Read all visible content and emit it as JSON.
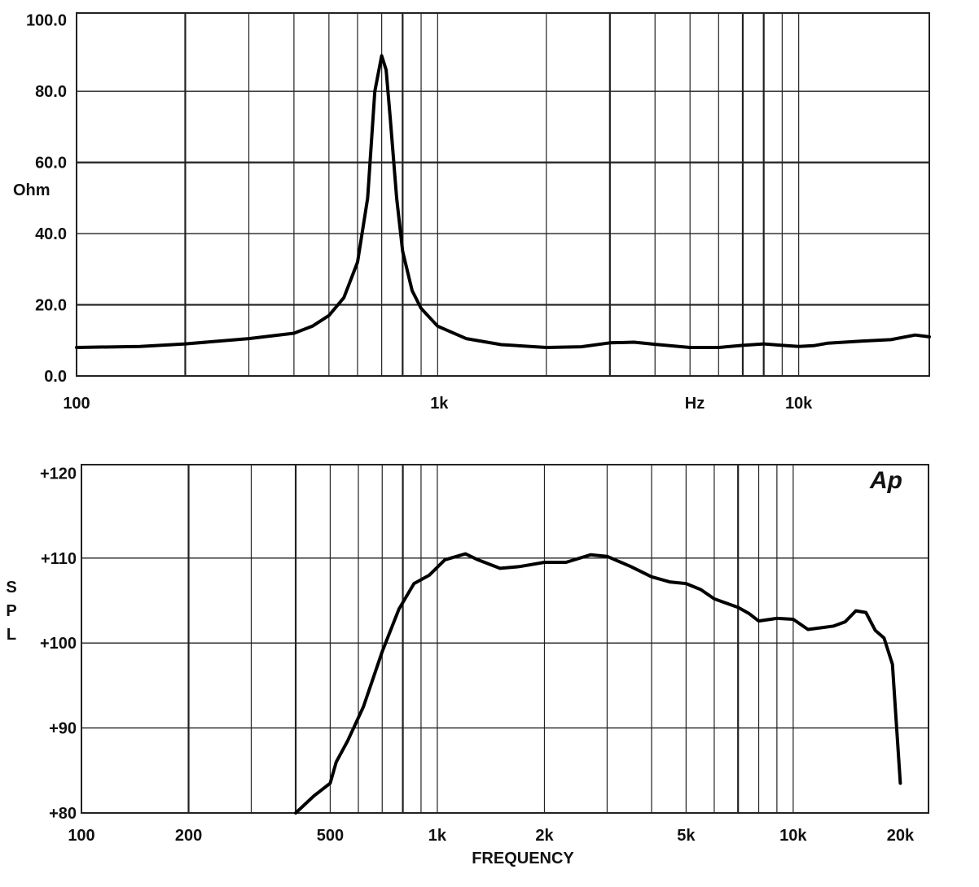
{
  "chart_data": [
    {
      "type": "line",
      "x_scale": "log",
      "xlim": [
        100,
        23000
      ],
      "ylim": [
        0,
        102
      ],
      "ylabel": "Ohm",
      "xlabel": "Hz",
      "x_tick_labels": [
        {
          "value": 100,
          "label": "100"
        },
        {
          "value": 1000,
          "label": "1k"
        },
        {
          "value": 10000,
          "label": "10k"
        }
      ],
      "y_tick_labels": [
        {
          "value": 0,
          "label": "0.0"
        },
        {
          "value": 20,
          "label": "20.0"
        },
        {
          "value": 40,
          "label": "40.0"
        },
        {
          "value": 60,
          "label": "60.0"
        },
        {
          "value": 80,
          "label": "80.0"
        },
        {
          "value": 100,
          "label": "100.0"
        }
      ],
      "grid": true,
      "series": [
        {
          "x": [
            100,
            150,
            200,
            300,
            400,
            450,
            500,
            550,
            600,
            640,
            670,
            700,
            720,
            740,
            770,
            800,
            850,
            900,
            1000,
            1200,
            1500,
            2000,
            2500,
            3000,
            3500,
            4000,
            5000,
            6000,
            7000,
            8000,
            9000,
            10000,
            11000,
            12000,
            15000,
            18000,
            21000,
            23000
          ],
          "y": [
            8,
            8.3,
            9,
            10.5,
            12,
            14,
            17,
            22,
            32,
            50,
            80,
            90,
            86,
            72,
            50,
            35,
            24,
            19,
            14,
            10.5,
            8.8,
            8,
            8.2,
            9.3,
            9.5,
            8.9,
            8,
            8,
            8.6,
            9,
            8.6,
            8.3,
            8.5,
            9.2,
            9.8,
            10.2,
            11.5,
            11
          ]
        }
      ]
    },
    {
      "type": "line",
      "x_scale": "log",
      "xlim": [
        100,
        24000
      ],
      "ylim": [
        80,
        121
      ],
      "ylabel": "S P L",
      "xlabel": "FREQUENCY",
      "x_tick_labels": [
        {
          "value": 100,
          "label": "100"
        },
        {
          "value": 200,
          "label": "200"
        },
        {
          "value": 500,
          "label": "500"
        },
        {
          "value": 1000,
          "label": "1k"
        },
        {
          "value": 2000,
          "label": "2k"
        },
        {
          "value": 5000,
          "label": "5k"
        },
        {
          "value": 10000,
          "label": "10k"
        },
        {
          "value": 20000,
          "label": "20k"
        }
      ],
      "y_tick_labels": [
        {
          "value": 80,
          "label": "+80"
        },
        {
          "value": 90,
          "label": "+90"
        },
        {
          "value": 100,
          "label": "+100"
        },
        {
          "value": 110,
          "label": "+110"
        },
        {
          "value": 120,
          "label": "+120"
        }
      ],
      "grid": true,
      "annotation": "Ap",
      "series": [
        {
          "x": [
            400,
            450,
            500,
            520,
            560,
            620,
            700,
            780,
            860,
            950,
            1050,
            1200,
            1300,
            1500,
            1700,
            2000,
            2300,
            2700,
            3000,
            3500,
            4000,
            4500,
            5000,
            5500,
            6000,
            7000,
            7500,
            8000,
            9000,
            10000,
            11000,
            12000,
            13000,
            14000,
            15000,
            16000,
            17000,
            18000,
            19000,
            20000
          ],
          "y": [
            80,
            82,
            83.5,
            86,
            88.5,
            92.5,
            99,
            104,
            107,
            108,
            109.8,
            110.5,
            109.8,
            108.8,
            109,
            109.5,
            109.5,
            110.4,
            110.2,
            109,
            107.8,
            107.2,
            107,
            106.3,
            105.2,
            104.2,
            103.5,
            102.6,
            102.9,
            102.8,
            101.6,
            101.8,
            102,
            102.5,
            103.8,
            103.6,
            101.5,
            100.6,
            97.5,
            83.5
          ]
        }
      ]
    }
  ]
}
